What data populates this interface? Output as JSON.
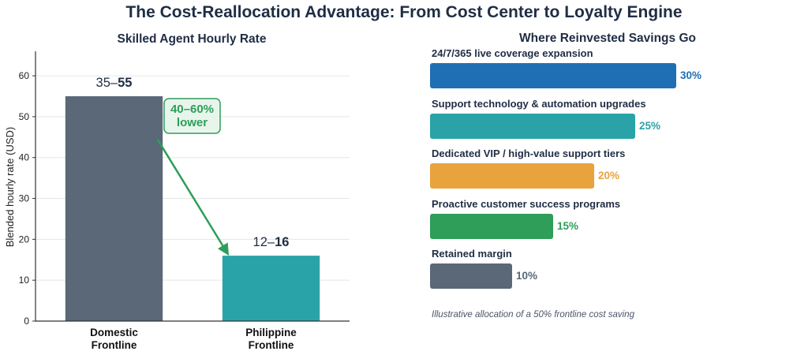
{
  "title": "The Cost-Reallocation Advantage: From Cost Center to Loyalty Engine",
  "chart_data": [
    {
      "type": "bar",
      "title": "Skilled Agent Hourly Rate",
      "xlabel": "",
      "ylabel": "Blended hourly rate (USD)",
      "categories": [
        "Domestic Frontline",
        "Philippine Frontline"
      ],
      "values": [
        55,
        16
      ],
      "ranges": [
        [
          35,
          55
        ],
        [
          12,
          16
        ]
      ],
      "ylim": [
        0,
        66
      ],
      "yticks": [
        0,
        10,
        20,
        30,
        40,
        50,
        60
      ],
      "grid": true,
      "colors": [
        "#5a6878",
        "#2aa3a8"
      ],
      "annotation": "40–60%\nlower",
      "annotation_color": "#2e9e58"
    },
    {
      "type": "bar",
      "orientation": "horizontal",
      "title": "Where Reinvested Savings Go",
      "categories": [
        "24/7/365 live coverage expansion",
        "Support technology & automation upgrades",
        "Dedicated VIP / high-value support tiers",
        "Proactive customer success programs",
        "Retained margin"
      ],
      "values": [
        30,
        25,
        20,
        15,
        10
      ],
      "unit": "%",
      "colors": [
        "#1f6fb5",
        "#2aa3a8",
        "#e8a33d",
        "#2e9e58",
        "#5a6878"
      ],
      "note": "Illustrative allocation of a 50% frontline cost saving"
    }
  ]
}
